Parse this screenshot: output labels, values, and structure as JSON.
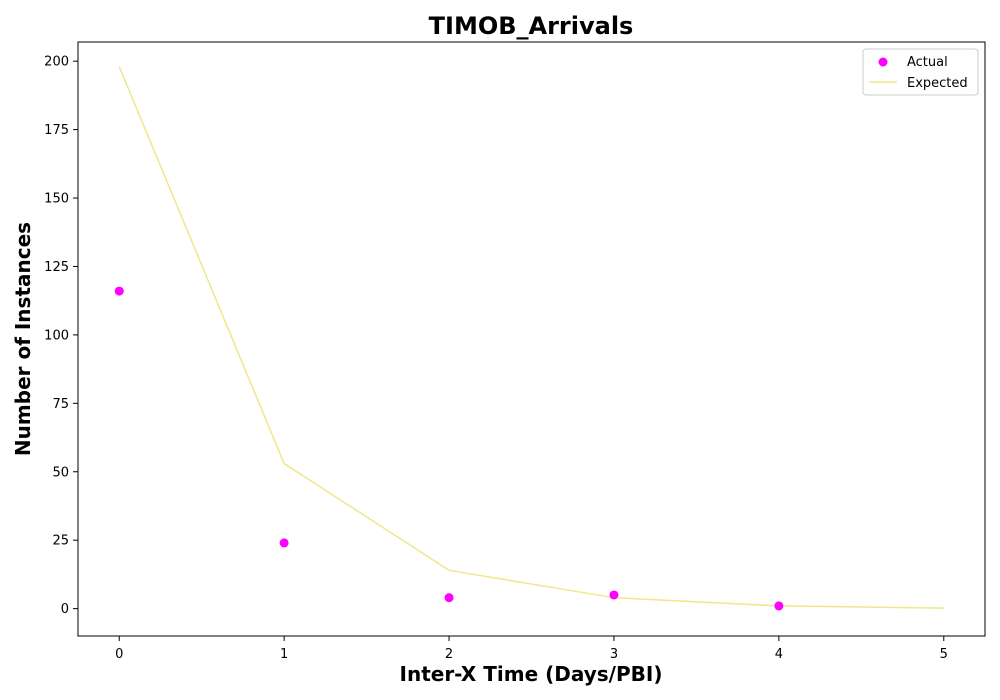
{
  "chart_data": {
    "type": "scatter",
    "title": "TIMOB_Arrivals",
    "xlabel": "Inter-X Time (Days/PBI)",
    "ylabel": "Number of Instances",
    "xlim": [
      -0.25,
      5.25
    ],
    "ylim": [
      -10,
      207
    ],
    "xticks": [
      0,
      1,
      2,
      3,
      4,
      5
    ],
    "yticks": [
      0,
      25,
      50,
      75,
      100,
      125,
      150,
      175,
      200
    ],
    "grid": false,
    "legend_position": "top-right",
    "series": [
      {
        "name": "Actual",
        "kind": "scatter",
        "color": "#ff00ff",
        "x": [
          0,
          1,
          2,
          3,
          4
        ],
        "y": [
          116,
          24,
          4,
          5,
          1
        ]
      },
      {
        "name": "Expected",
        "kind": "line",
        "color": "#f0e68c",
        "x": [
          0,
          1,
          2,
          3,
          4,
          5
        ],
        "y": [
          198,
          53,
          14,
          4,
          1,
          0.2
        ]
      }
    ]
  }
}
